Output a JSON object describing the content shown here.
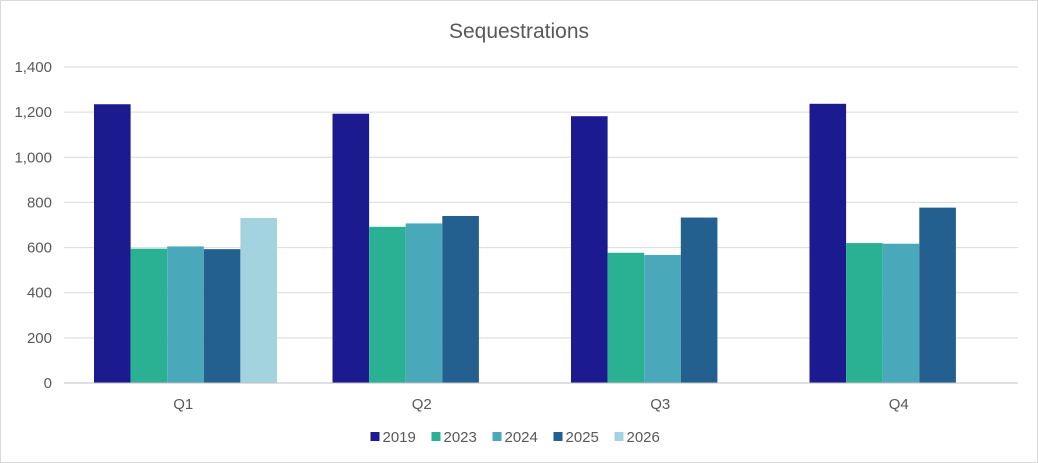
{
  "chart_data": {
    "type": "bar",
    "title": "Sequestrations",
    "xlabel": "",
    "ylabel": "",
    "categories": [
      "Q1",
      "Q2",
      "Q3",
      "Q4"
    ],
    "ylim": [
      0,
      1400
    ],
    "yticks": [
      0,
      200,
      400,
      600,
      800,
      1000,
      1200,
      1400
    ],
    "ytick_labels": [
      "0",
      "200",
      "400",
      "600",
      "800",
      "1,000",
      "1,200",
      "1,400"
    ],
    "grid": true,
    "legend_position": "bottom",
    "series": [
      {
        "name": "2019",
        "color": "#1b1b8f",
        "values": [
          1235,
          1193,
          1182,
          1237
        ]
      },
      {
        "name": "2023",
        "color": "#2ab193",
        "values": [
          595,
          692,
          577,
          620
        ]
      },
      {
        "name": "2024",
        "color": "#4aa8bb",
        "values": [
          605,
          707,
          567,
          617
        ]
      },
      {
        "name": "2025",
        "color": "#235f8f",
        "values": [
          593,
          740,
          733,
          777
        ]
      },
      {
        "name": "2026",
        "color": "#a3d3de",
        "values": [
          731,
          null,
          null,
          null
        ]
      }
    ]
  }
}
